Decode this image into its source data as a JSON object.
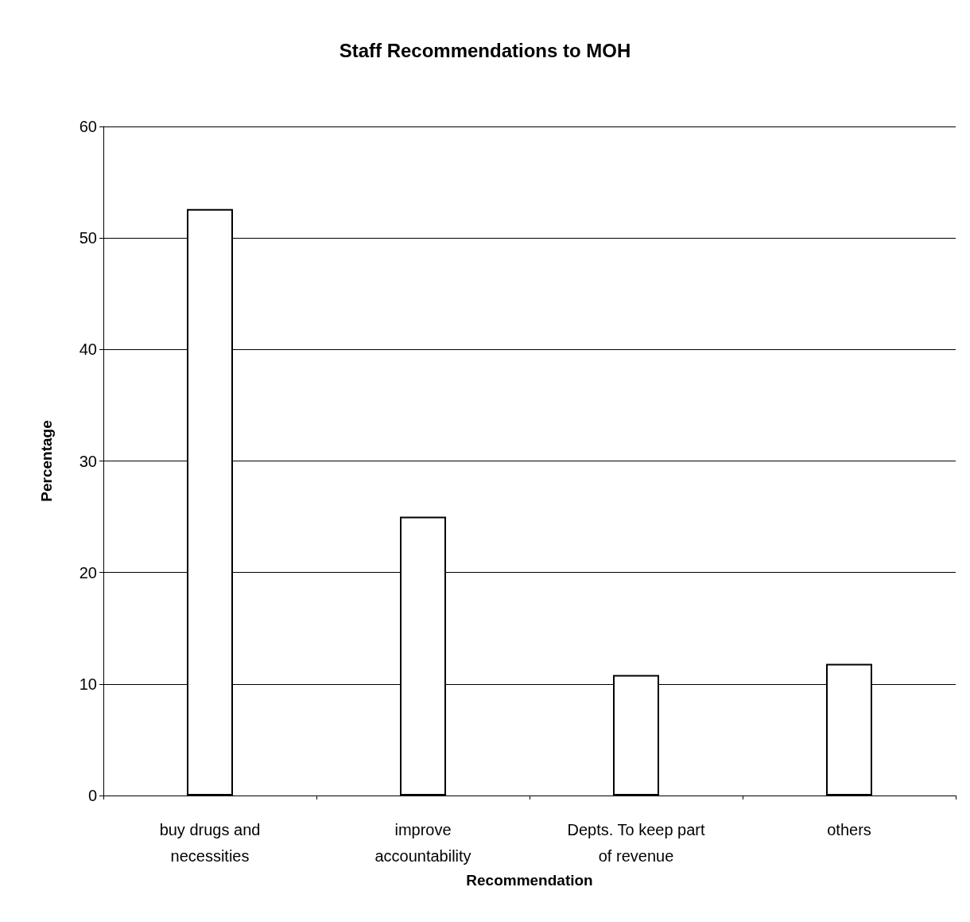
{
  "chart_data": {
    "type": "bar",
    "title": "Staff Recommendations to MOH",
    "xlabel": "Recommendation",
    "ylabel": "Percentage",
    "categories": [
      "buy drugs and\nnecessities",
      "improve\naccountability",
      "Depts. To keep part\nof revenue",
      "others"
    ],
    "values": [
      52.6,
      25,
      10.8,
      11.8
    ],
    "color": "#ffffff",
    "ylim": [
      0,
      60
    ],
    "yticks": [
      0,
      10,
      20,
      30,
      40,
      50,
      60
    ],
    "grid": "y"
  }
}
